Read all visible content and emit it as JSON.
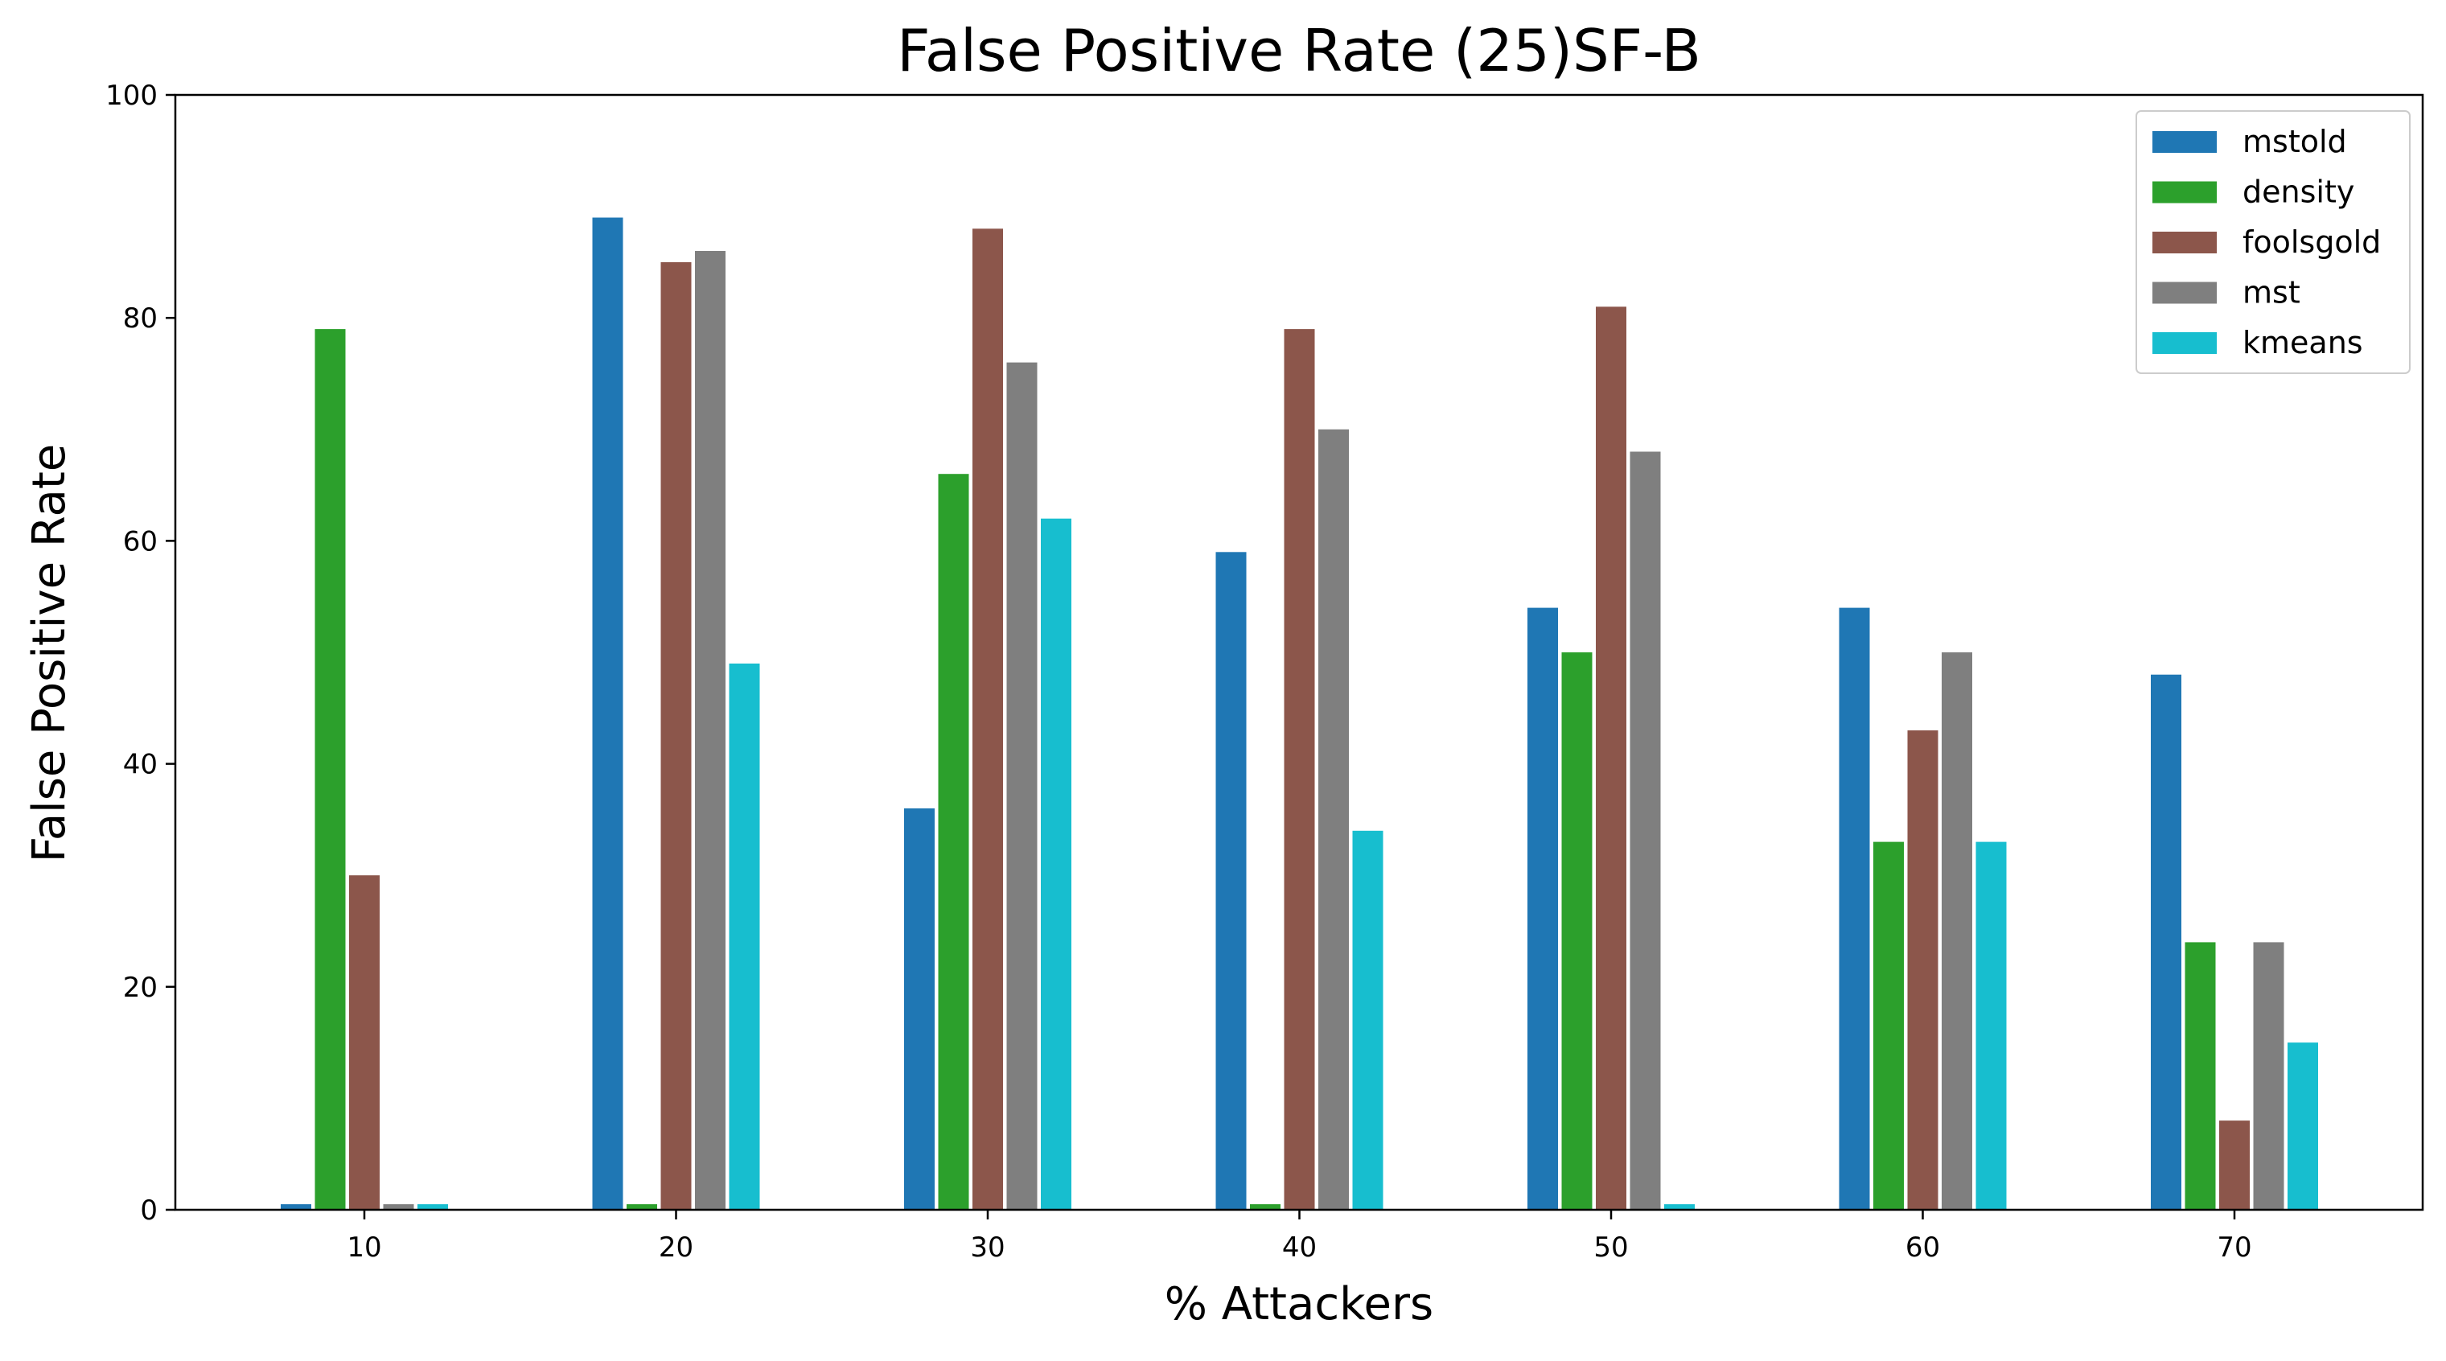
{
  "chart_data": {
    "type": "bar",
    "title": "False Positive Rate (25)SF-B",
    "xlabel": "% Attackers",
    "ylabel": "False Positive Rate",
    "categories": [
      "10",
      "20",
      "30",
      "40",
      "50",
      "60",
      "70"
    ],
    "ylim": [
      0,
      100
    ],
    "yticks": [
      "0",
      "20",
      "40",
      "60",
      "80",
      "100"
    ],
    "grid": false,
    "legend_position": "top-right",
    "series": [
      {
        "name": "mstold",
        "color": "#1f77b4",
        "values": [
          0.5,
          89,
          36,
          59,
          54,
          54,
          48
        ]
      },
      {
        "name": "density",
        "color": "#2ca02c",
        "values": [
          79,
          0.5,
          66,
          0.5,
          50,
          33,
          24
        ]
      },
      {
        "name": "foolsgold",
        "color": "#8c564b",
        "values": [
          30,
          85,
          88,
          79,
          81,
          43,
          8
        ]
      },
      {
        "name": "mst",
        "color": "#7f7f7f",
        "values": [
          0.5,
          86,
          76,
          70,
          68,
          50,
          24
        ]
      },
      {
        "name": "kmeans",
        "color": "#17becf",
        "values": [
          0.5,
          49,
          62,
          34,
          0.5,
          33,
          15
        ]
      }
    ]
  }
}
